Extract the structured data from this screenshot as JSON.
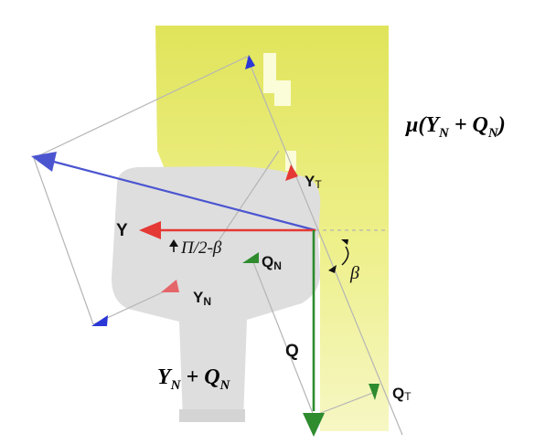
{
  "labels": {
    "friction_formula": {
      "prefix": "μ(",
      "y_main": "Y",
      "y_sub": "N",
      "plus": " + ",
      "q_main": "Q",
      "q_sub": "N",
      "suffix": ")"
    },
    "sum_formula": {
      "y_main": "Y",
      "y_sub": "N",
      "plus": " + ",
      "q_main": "Q",
      "q_sub": "N"
    },
    "Y": "Y",
    "Q": "Q",
    "YT": {
      "main": "Y",
      "sub": "T"
    },
    "YN": {
      "main": "Y",
      "sub": "N"
    },
    "QN": {
      "main": "Q",
      "sub": "N"
    },
    "QT": {
      "main": "Q",
      "sub": "T"
    },
    "angle_complement": "Π/2-β",
    "beta": "β"
  },
  "colors": {
    "wheel": "#e9ea7a",
    "rail": "#dedede",
    "friction_vector": "#4b55d0",
    "lateral_force": "#e53935",
    "vertical_force": "#2e8b2e",
    "guide_lines": "#b5b5b5"
  }
}
